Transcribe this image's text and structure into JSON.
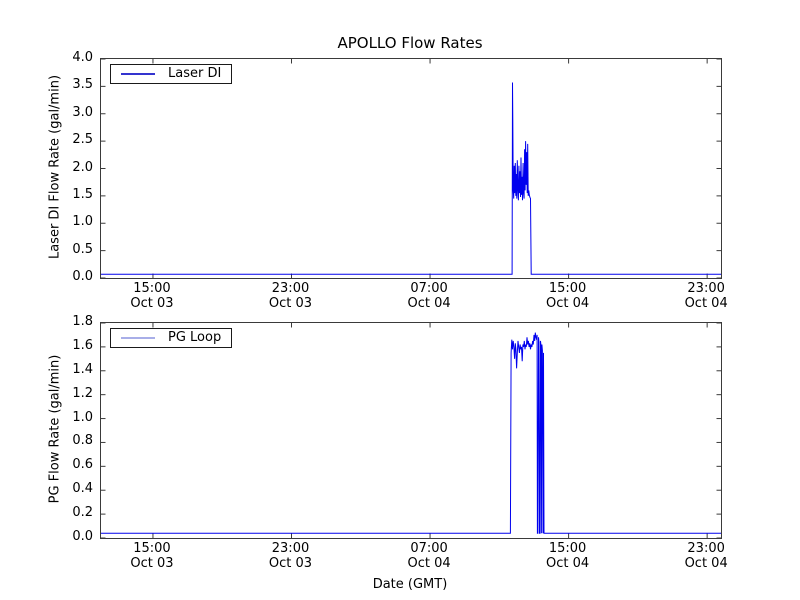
{
  "figure": {
    "title": "APOLLO Flow Rates",
    "background": "#ffffff",
    "spine_color": "#3a3a3a",
    "text_color": "#000000"
  },
  "chart_data": [
    {
      "type": "line",
      "ylabel": "Laser DI Flow Rate (gal/min)",
      "legend": {
        "label": "Laser DI",
        "location": "upper left",
        "swatch_color": "#3434cf"
      },
      "line_color": "#0000ee",
      "grid": false,
      "x_origin": "hours after Oct 03 12:00 GMT",
      "xlim": [
        0,
        35.8
      ],
      "ylim": [
        0,
        4.0
      ],
      "yticks": [
        "0.0",
        "0.5",
        "1.0",
        "1.5",
        "2.0",
        "2.5",
        "3.0",
        "3.5",
        "4.0"
      ],
      "xticks": [
        {
          "value": 3,
          "time": "15:00",
          "date": "Oct 03"
        },
        {
          "value": 11,
          "time": "23:00",
          "date": "Oct 03"
        },
        {
          "value": 19,
          "time": "07:00",
          "date": "Oct 04"
        },
        {
          "value": 27,
          "time": "15:00",
          "date": "Oct 04"
        },
        {
          "value": 35,
          "time": "23:00",
          "date": "Oct 04"
        }
      ],
      "series": [
        {
          "name": "Laser DI",
          "points": [
            [
              0,
              0.07
            ],
            [
              23.7,
              0.07
            ],
            [
              23.74,
              0.07
            ],
            [
              23.76,
              3.57
            ],
            [
              23.78,
              2.9
            ],
            [
              23.8,
              1.62
            ],
            [
              23.83,
              1.45
            ],
            [
              23.86,
              2.05
            ],
            [
              23.89,
              1.55
            ],
            [
              23.92,
              2.1
            ],
            [
              23.95,
              1.5
            ],
            [
              23.98,
              1.9
            ],
            [
              24.01,
              1.45
            ],
            [
              24.04,
              2.15
            ],
            [
              24.07,
              1.6
            ],
            [
              24.1,
              1.42
            ],
            [
              24.13,
              2.05
            ],
            [
              24.16,
              1.55
            ],
            [
              24.19,
              1.95
            ],
            [
              24.22,
              1.48
            ],
            [
              24.25,
              2.2
            ],
            [
              24.28,
              1.52
            ],
            [
              24.31,
              1.85
            ],
            [
              24.34,
              1.42
            ],
            [
              24.37,
              2.1
            ],
            [
              24.4,
              1.55
            ],
            [
              24.43,
              1.45
            ],
            [
              24.46,
              2.35
            ],
            [
              24.49,
              1.6
            ],
            [
              24.52,
              2.5
            ],
            [
              24.55,
              1.7
            ],
            [
              24.58,
              2.3
            ],
            [
              24.61,
              1.55
            ],
            [
              24.64,
              2.45
            ],
            [
              24.67,
              1.5
            ],
            [
              24.7,
              1.6
            ],
            [
              24.73,
              1.52
            ],
            [
              24.76,
              1.48
            ],
            [
              24.8,
              1.45
            ],
            [
              24.84,
              0.07
            ],
            [
              35.8,
              0.07
            ]
          ]
        }
      ]
    },
    {
      "type": "line",
      "ylabel": "PG Flow Rate (gal/min)",
      "xlabel": "Date (GMT)",
      "legend": {
        "label": "PG Loop",
        "location": "upper left",
        "swatch_color": "#a8aee8"
      },
      "line_color": "#0000ee",
      "grid": false,
      "x_origin": "hours after Oct 03 12:00 GMT",
      "xlim": [
        0,
        35.8
      ],
      "ylim": [
        0,
        1.8
      ],
      "yticks": [
        "0.0",
        "0.2",
        "0.4",
        "0.6",
        "0.8",
        "1.0",
        "1.2",
        "1.4",
        "1.6",
        "1.8"
      ],
      "xticks": [
        {
          "value": 3,
          "time": "15:00",
          "date": "Oct 03"
        },
        {
          "value": 11,
          "time": "23:00",
          "date": "Oct 03"
        },
        {
          "value": 19,
          "time": "07:00",
          "date": "Oct 04"
        },
        {
          "value": 27,
          "time": "15:00",
          "date": "Oct 04"
        },
        {
          "value": 35,
          "time": "23:00",
          "date": "Oct 04"
        }
      ],
      "series": [
        {
          "name": "PG Loop",
          "points": [
            [
              0,
              0.04
            ],
            [
              23.64,
              0.04
            ],
            [
              23.68,
              1.55
            ],
            [
              23.72,
              1.66
            ],
            [
              23.76,
              1.58
            ],
            [
              23.8,
              1.65
            ],
            [
              23.84,
              1.6
            ],
            [
              23.88,
              1.5
            ],
            [
              23.92,
              1.63
            ],
            [
              23.96,
              1.58
            ],
            [
              24.0,
              1.42
            ],
            [
              24.04,
              1.55
            ],
            [
              24.08,
              1.65
            ],
            [
              24.12,
              1.6
            ],
            [
              24.16,
              1.55
            ],
            [
              24.2,
              1.62
            ],
            [
              24.24,
              1.58
            ],
            [
              24.28,
              1.6
            ],
            [
              24.32,
              1.48
            ],
            [
              24.36,
              1.62
            ],
            [
              24.4,
              1.6
            ],
            [
              24.44,
              1.65
            ],
            [
              24.48,
              1.58
            ],
            [
              24.52,
              1.62
            ],
            [
              24.56,
              1.6
            ],
            [
              24.6,
              1.68
            ],
            [
              24.64,
              1.62
            ],
            [
              24.68,
              1.65
            ],
            [
              24.72,
              1.6
            ],
            [
              24.76,
              1.63
            ],
            [
              24.8,
              1.58
            ],
            [
              24.84,
              1.62
            ],
            [
              24.88,
              1.6
            ],
            [
              24.92,
              1.65
            ],
            [
              24.96,
              1.62
            ],
            [
              25.0,
              1.7
            ],
            [
              25.04,
              1.65
            ],
            [
              25.08,
              1.72
            ],
            [
              25.12,
              1.68
            ],
            [
              25.16,
              1.66
            ],
            [
              25.18,
              1.7
            ],
            [
              25.2,
              0.04
            ],
            [
              25.23,
              0.04
            ],
            [
              25.26,
              1.68
            ],
            [
              25.29,
              1.64
            ],
            [
              25.32,
              0.04
            ],
            [
              25.35,
              0.04
            ],
            [
              25.38,
              1.65
            ],
            [
              25.41,
              1.6
            ],
            [
              25.43,
              0.04
            ],
            [
              25.46,
              1.62
            ],
            [
              25.49,
              1.57
            ],
            [
              25.52,
              0.04
            ],
            [
              25.55,
              1.55
            ],
            [
              25.58,
              0.04
            ],
            [
              35.8,
              0.04
            ]
          ]
        }
      ]
    }
  ]
}
